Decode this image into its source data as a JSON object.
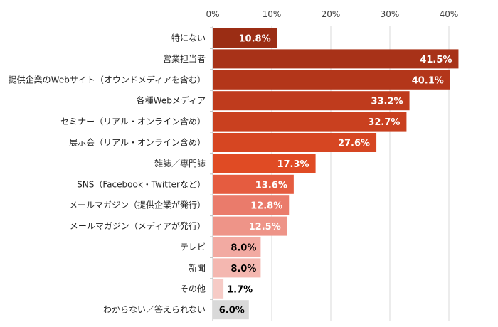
{
  "chart_data": {
    "type": "bar",
    "orientation": "horizontal",
    "categories": [
      "特にない",
      "営業担当者",
      "提供企業のWebサイト（オウンドメディアを含む）",
      "各種Webメディア",
      "セミナー（リアル・オンライン含め）",
      "展示会（リアル・オンライン含め）",
      "雑誌／専門誌",
      "SNS（Facebook・Twitterなど）",
      "メールマガジン（提供企業が発行）",
      "メールマガジン（メディアが発行）",
      "テレビ",
      "新聞",
      "その他",
      "わからない／答えられない"
    ],
    "values": [
      10.8,
      41.5,
      40.1,
      33.2,
      32.7,
      27.6,
      17.3,
      13.6,
      12.8,
      12.5,
      8.0,
      8.0,
      1.7,
      6.0
    ],
    "data_labels": [
      "10.8%",
      "41.5%",
      "40.1%",
      "33.2%",
      "32.7%",
      "27.6%",
      "17.3%",
      "13.6%",
      "12.8%",
      "12.5%",
      "8.0%",
      "8.0%",
      "1.7%",
      "6.0%"
    ],
    "colors": [
      "#9b2d14",
      "#a83218",
      "#b3361a",
      "#bf3b1d",
      "#c9401f",
      "#d64622",
      "#e04b24",
      "#e55c40",
      "#ea7b6b",
      "#ee9488",
      "#f2aaa2",
      "#f4b7b0",
      "#f6cbc6",
      "#d9d9d9"
    ],
    "label_colors": [
      "#ffffff",
      "#ffffff",
      "#ffffff",
      "#ffffff",
      "#ffffff",
      "#ffffff",
      "#ffffff",
      "#ffffff",
      "#ffffff",
      "#ffffff",
      "#000000",
      "#000000",
      "#000000",
      "#000000"
    ],
    "xaxis": {
      "position": "top",
      "ticks": [
        0,
        10,
        20,
        30,
        40
      ],
      "tick_labels": [
        "0%",
        "10%",
        "20%",
        "30%",
        "40%"
      ],
      "xlim": [
        0,
        45
      ]
    },
    "grid": true,
    "title": "",
    "xlabel": "",
    "ylabel": ""
  }
}
